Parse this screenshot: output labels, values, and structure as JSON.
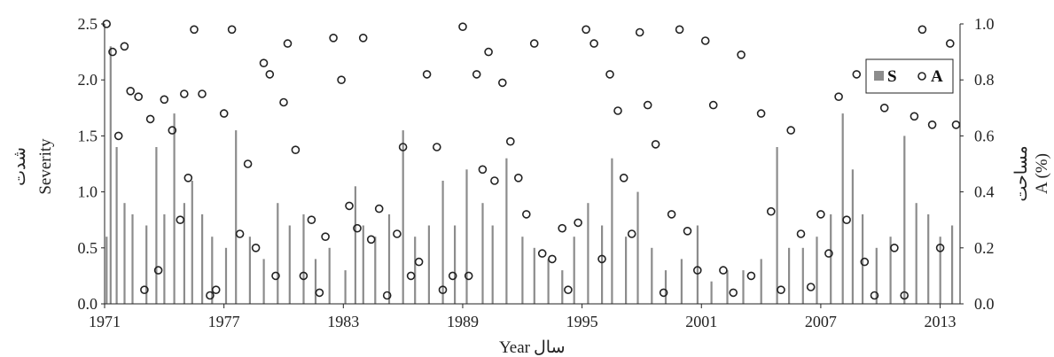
{
  "chart_data": {
    "type": "bar",
    "secondary_type": "scatter",
    "x_range": [
      1971,
      2014
    ],
    "x_ticks": [
      "1971",
      "1977",
      "1983",
      "1989",
      "1995",
      "2001",
      "2007",
      "2013"
    ],
    "y_left": {
      "label_main": "Severity",
      "label_alt": "شدت",
      "range": [
        0,
        2.5
      ],
      "ticks": [
        "0.0",
        "0.5",
        "1.0",
        "1.5",
        "2.0",
        "2.5"
      ]
    },
    "y_right": {
      "label_main": "A (%)",
      "label_alt": "مساحت",
      "range": [
        0,
        1
      ],
      "ticks": [
        "0.0",
        "0.2",
        "0.4",
        "0.6",
        "0.8",
        "1.0"
      ]
    },
    "x_label_main": "Year",
    "x_label_alt": "سال",
    "legend": {
      "position": "top-right",
      "items": [
        {
          "symbol": "bar",
          "label": "S"
        },
        {
          "symbol": "circle",
          "label": "A"
        }
      ]
    },
    "series": [
      {
        "name": "S",
        "kind": "bar",
        "color": "#8c8c8c",
        "x": [
          1971.1,
          1971.3,
          1971.6,
          1972.0,
          1972.4,
          1973.1,
          1973.6,
          1974.0,
          1974.5,
          1975.0,
          1975.4,
          1975.9,
          1976.4,
          1977.1,
          1977.6,
          1978.3,
          1979.0,
          1979.7,
          1980.3,
          1981.0,
          1981.6,
          1982.3,
          1983.1,
          1983.6,
          1984.0,
          1984.6,
          1985.3,
          1986.0,
          1986.6,
          1987.3,
          1988.0,
          1988.6,
          1989.2,
          1990.0,
          1990.5,
          1991.2,
          1992.0,
          1992.6,
          1993.3,
          1994.0,
          1994.6,
          1995.3,
          1996.0,
          1996.5,
          1997.2,
          1997.8,
          1998.5,
          1999.2,
          2000.0,
          2000.8,
          2001.5,
          2002.3,
          2003.1,
          2004.0,
          2004.8,
          2005.4,
          2006.1,
          2006.8,
          2007.5,
          2008.1,
          2008.6,
          2009.1,
          2009.8,
          2010.5,
          2011.2,
          2011.8,
          2012.4,
          2013.0,
          2013.6
        ],
        "values": [
          0.6,
          2.3,
          1.4,
          0.9,
          0.8,
          0.7,
          1.4,
          0.8,
          1.7,
          0.9,
          1.1,
          0.8,
          0.6,
          0.5,
          1.55,
          0.6,
          0.4,
          0.9,
          0.7,
          0.8,
          0.4,
          0.5,
          0.3,
          1.05,
          0.7,
          0.6,
          0.8,
          1.55,
          0.6,
          0.7,
          1.1,
          0.7,
          1.2,
          0.9,
          0.7,
          1.3,
          0.6,
          0.5,
          0.4,
          0.3,
          0.6,
          0.9,
          0.7,
          1.3,
          0.6,
          1.0,
          0.5,
          0.3,
          0.4,
          0.7,
          0.2,
          0.3,
          0.3,
          0.4,
          1.4,
          0.5,
          0.5,
          0.6,
          0.8,
          1.7,
          1.2,
          0.8,
          0.5,
          0.6,
          1.5,
          0.9,
          0.8,
          0.6,
          0.7
        ]
      },
      {
        "name": "A",
        "kind": "scatter",
        "marker": "open-circle",
        "color": "#222222",
        "x": [
          1971.1,
          1971.4,
          1971.7,
          1972.0,
          1972.3,
          1972.7,
          1973.0,
          1973.3,
          1973.7,
          1974.0,
          1974.4,
          1974.8,
          1975.0,
          1975.2,
          1975.5,
          1975.9,
          1976.3,
          1976.6,
          1977.0,
          1977.4,
          1977.8,
          1978.2,
          1978.6,
          1979.0,
          1979.3,
          1979.6,
          1980.0,
          1980.2,
          1980.6,
          1981.0,
          1981.4,
          1981.8,
          1982.1,
          1982.5,
          1982.9,
          1983.3,
          1983.7,
          1984.0,
          1984.4,
          1984.8,
          1985.2,
          1985.7,
          1986.0,
          1986.4,
          1986.8,
          1987.2,
          1987.7,
          1988.0,
          1988.5,
          1989.0,
          1989.3,
          1989.7,
          1990.0,
          1990.3,
          1990.6,
          1991.0,
          1991.4,
          1991.8,
          1992.2,
          1992.6,
          1993.0,
          1993.5,
          1994.0,
          1994.3,
          1994.8,
          1995.2,
          1995.6,
          1996.0,
          1996.4,
          1996.8,
          1997.1,
          1997.5,
          1997.9,
          1998.3,
          1998.7,
          1999.1,
          1999.5,
          1999.9,
          2000.3,
          2000.8,
          2001.2,
          2001.6,
          2002.1,
          2002.6,
          2003.0,
          2003.5,
          2004.0,
          2004.5,
          2005.0,
          2005.5,
          2006.0,
          2006.5,
          2007.0,
          2007.4,
          2007.9,
          2008.3,
          2008.8,
          2009.2,
          2009.7,
          2010.2,
          2010.7,
          2011.2,
          2011.7,
          2012.1,
          2012.6,
          2013.0,
          2013.5,
          2013.8
        ],
        "values": [
          1.0,
          0.9,
          0.6,
          0.92,
          0.76,
          0.74,
          0.05,
          0.66,
          0.12,
          0.73,
          0.62,
          0.3,
          0.75,
          0.45,
          0.98,
          0.75,
          0.03,
          0.05,
          0.68,
          0.98,
          0.25,
          0.5,
          0.2,
          0.86,
          0.82,
          0.1,
          0.72,
          0.93,
          0.55,
          0.1,
          0.3,
          0.04,
          0.24,
          0.95,
          0.8,
          0.35,
          0.27,
          0.95,
          0.23,
          0.34,
          0.03,
          0.25,
          0.56,
          0.1,
          0.15,
          0.82,
          0.56,
          0.05,
          0.1,
          0.99,
          0.1,
          0.82,
          0.48,
          0.9,
          0.44,
          0.79,
          0.58,
          0.45,
          0.32,
          0.93,
          0.18,
          0.16,
          0.27,
          0.05,
          0.29,
          0.98,
          0.93,
          0.16,
          0.82,
          0.69,
          0.45,
          0.25,
          0.97,
          0.71,
          0.57,
          0.04,
          0.32,
          0.98,
          0.26,
          0.12,
          0.94,
          0.71,
          0.12,
          0.04,
          0.89,
          0.1,
          0.68,
          0.33,
          0.05,
          0.62,
          0.25,
          0.06,
          0.32,
          0.18,
          0.74,
          0.3,
          0.82,
          0.15,
          0.03,
          0.7,
          0.2,
          0.03,
          0.67,
          0.98,
          0.64,
          0.2,
          0.93,
          0.64
        ]
      }
    ]
  }
}
